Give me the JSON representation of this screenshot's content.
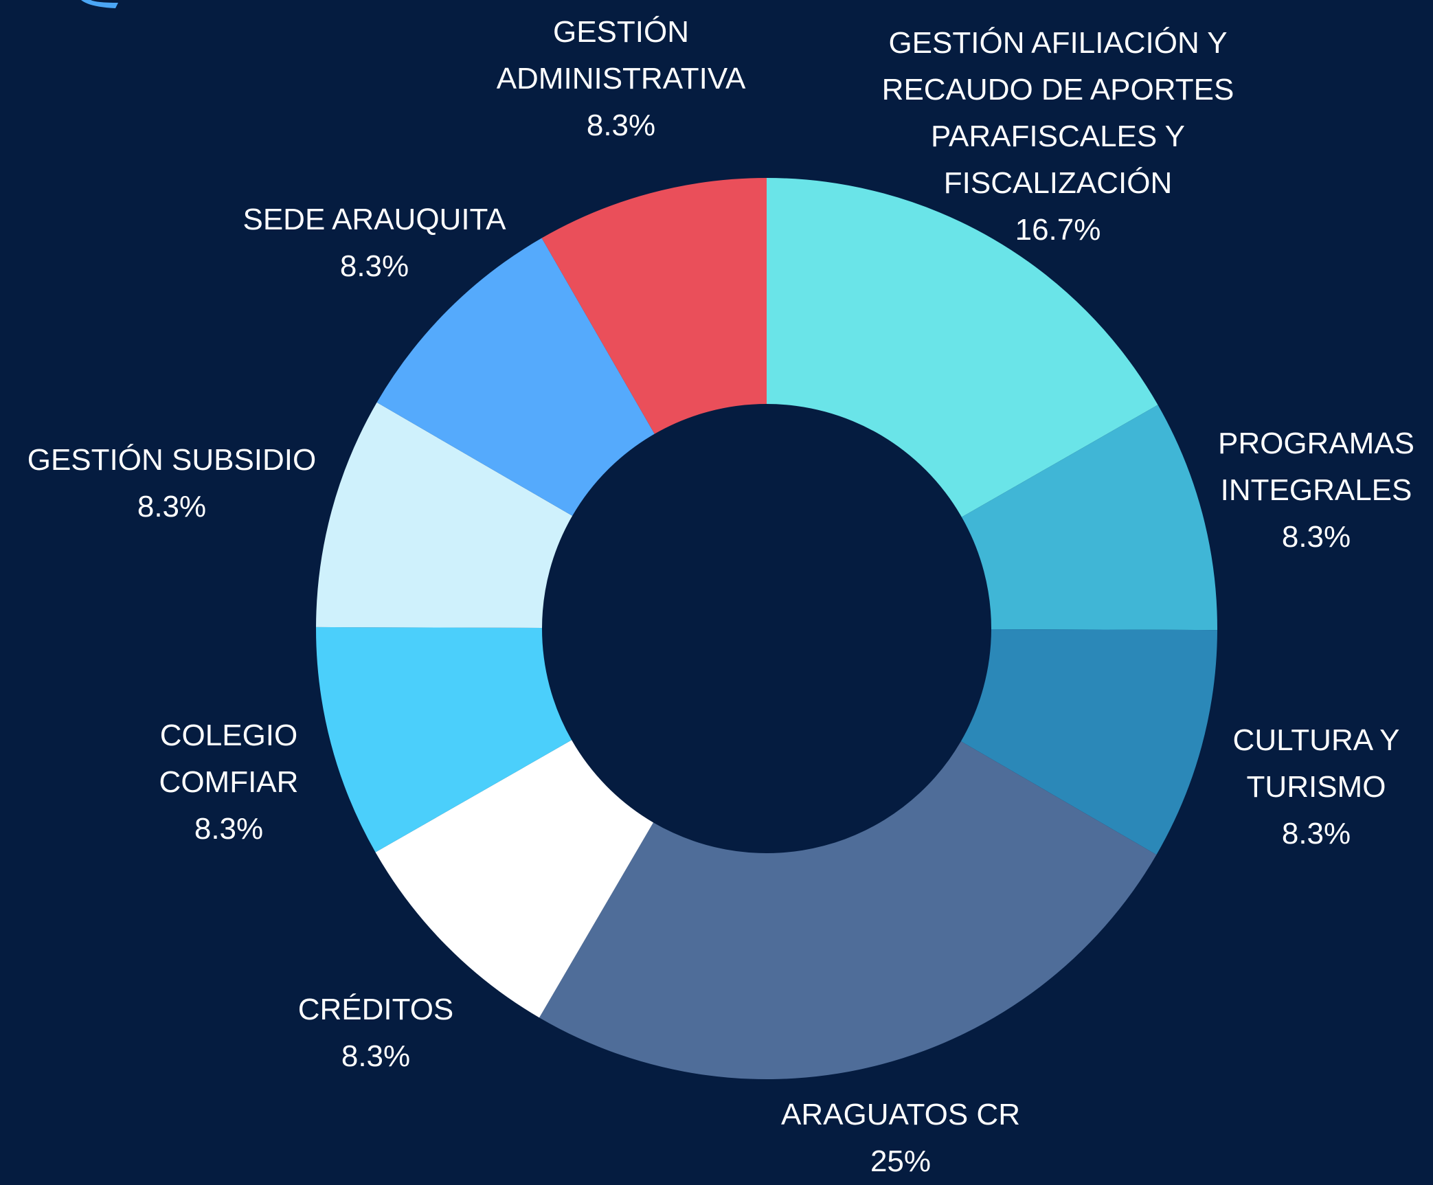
{
  "chart_data": {
    "type": "donut",
    "categories": [
      "GESTIÓN AFILIACIÓN Y RECAUDO DE APORTES PARAFISCALES Y FISCALIZACIÓN",
      "PROGRAMAS INTEGRALES",
      "CULTURA Y TURISMO",
      "ARAGUATOS CR",
      "CRÉDITOS",
      "COLEGIO COMFIAR",
      "GESTIÓN SUBSIDIO",
      "SEDE ARAUQUITA",
      "GESTIÓN ADMINISTRATIVA"
    ],
    "values": [
      16.7,
      8.3,
      8.3,
      25,
      8.3,
      8.3,
      8.3,
      8.3,
      8.3
    ],
    "value_labels": [
      "16.7%",
      "8.3%",
      "8.3%",
      "25%",
      "8.3%",
      "8.3%",
      "8.3%",
      "8.3%",
      "8.3%"
    ],
    "colors": [
      "#6ae4e8",
      "#40b6d6",
      "#2b88b8",
      "#4f6d99",
      "#ffffff",
      "#4bcffb",
      "#cff1fc",
      "#55aafc",
      "#ea4f5a"
    ]
  }
}
